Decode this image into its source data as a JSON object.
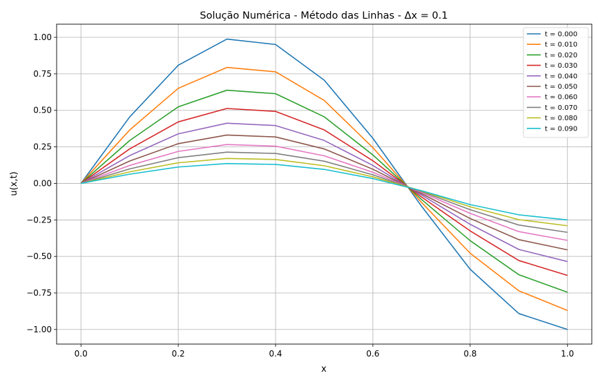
{
  "chart_data": {
    "type": "line",
    "title": "Solução Numérica - Método das Linhas - Δx = 0.1",
    "xlabel": "x",
    "ylabel": "u(x,t)",
    "xlim": [
      -0.05,
      1.05
    ],
    "ylim": [
      -1.1,
      1.09
    ],
    "grid": true,
    "legend_position": "top-right",
    "x": [
      0.0,
      0.1,
      0.2,
      0.3,
      0.4,
      0.5,
      0.6,
      0.7,
      0.8,
      0.9,
      1.0
    ],
    "x_ticks": [
      0.0,
      0.2,
      0.4,
      0.6,
      0.8,
      1.0
    ],
    "x_tick_labels": [
      "0.0",
      "0.2",
      "0.4",
      "0.6",
      "0.8",
      "1.0"
    ],
    "y_ticks": [
      1.0,
      0.75,
      0.5,
      0.25,
      0.0,
      -0.25,
      -0.5,
      -0.75,
      -1.0
    ],
    "y_tick_labels": [
      "1.00",
      "0.75",
      "0.50",
      "0.25",
      "0.00",
      "−0.25",
      "−0.50",
      "−0.75",
      "−1.00"
    ],
    "series": [
      {
        "name": "t = 0.000",
        "color": "#1f77b4",
        "values": [
          0.0,
          0.454,
          0.809,
          0.988,
          0.951,
          0.707,
          0.309,
          -0.156,
          -0.588,
          -0.891,
          -1.0
        ]
      },
      {
        "name": "t = 0.010",
        "color": "#ff7f0e",
        "values": [
          0.0,
          0.365,
          0.651,
          0.794,
          0.764,
          0.568,
          0.245,
          -0.13,
          -0.478,
          -0.735,
          -0.87
        ]
      },
      {
        "name": "t = 0.020",
        "color": "#2ca02c",
        "values": [
          0.0,
          0.293,
          0.524,
          0.638,
          0.614,
          0.456,
          0.195,
          -0.11,
          -0.392,
          -0.625,
          -0.745
        ]
      },
      {
        "name": "t = 0.030",
        "color": "#d62728",
        "values": [
          0.0,
          0.236,
          0.421,
          0.513,
          0.493,
          0.366,
          0.155,
          -0.093,
          -0.325,
          -0.528,
          -0.63
        ]
      },
      {
        "name": "t = 0.040",
        "color": "#9467bd",
        "values": [
          0.0,
          0.19,
          0.339,
          0.412,
          0.396,
          0.294,
          0.123,
          -0.08,
          -0.28,
          -0.452,
          -0.535
        ]
      },
      {
        "name": "t = 0.050",
        "color": "#8c564b",
        "values": [
          0.0,
          0.153,
          0.272,
          0.331,
          0.318,
          0.236,
          0.097,
          -0.07,
          -0.24,
          -0.385,
          -0.455
        ]
      },
      {
        "name": "t = 0.060",
        "color": "#e377c2",
        "values": [
          0.0,
          0.123,
          0.219,
          0.266,
          0.255,
          0.189,
          0.076,
          -0.062,
          -0.205,
          -0.33,
          -0.39
        ]
      },
      {
        "name": "t = 0.070",
        "color": "#7f7f7f",
        "values": [
          0.0,
          0.099,
          0.176,
          0.214,
          0.205,
          0.152,
          0.059,
          -0.056,
          -0.18,
          -0.285,
          -0.335
        ]
      },
      {
        "name": "t = 0.080",
        "color": "#bcbd22",
        "values": [
          0.0,
          0.079,
          0.141,
          0.171,
          0.164,
          0.121,
          0.045,
          -0.052,
          -0.16,
          -0.248,
          -0.29
        ]
      },
      {
        "name": "t = 0.090",
        "color": "#17becf",
        "values": [
          0.0,
          0.063,
          0.112,
          0.136,
          0.13,
          0.096,
          0.033,
          -0.05,
          -0.145,
          -0.215,
          -0.25
        ]
      }
    ]
  }
}
